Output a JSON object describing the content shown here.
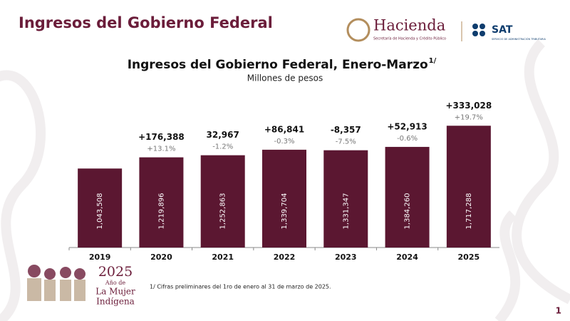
{
  "header": {
    "title": "Ingresos del Gobierno Federal",
    "logo_main": "Hacienda",
    "logo_sub": "Secretaría de Hacienda y Crédito Público",
    "logo_sat": "SAT",
    "logo_sat_sub": "SERVICIO DE ADMINISTRACIÓN TRIBUTARIA"
  },
  "chart_data": {
    "type": "bar",
    "title": "Ingresos del Gobierno Federal, Enero-Marzo",
    "title_note": "1/",
    "subtitle": "Millones de pesos",
    "categories": [
      "2019",
      "2020",
      "2021",
      "2022",
      "2023",
      "2024",
      "2025"
    ],
    "values": [
      1043508,
      1219896,
      1252863,
      1339704,
      1331347,
      1384260,
      1717288
    ],
    "value_labels": [
      "1,043,508",
      "1,219,896",
      "1,252,863",
      "1,339,704",
      "1,331,347",
      "1,384,260",
      "1,717,288"
    ],
    "color": "#5b1731",
    "ylim": [
      -200000,
      1900000
    ],
    "changes": {
      "values": [
        null,
        176388,
        32967,
        86841,
        -8357,
        52913,
        333028
      ],
      "value_labels": [
        null,
        "+176,388",
        "32,967",
        "+86,841",
        "-8,357",
        "+52,913",
        "+333,028"
      ]
    },
    "change_pct": {
      "values": [
        null,
        13.1,
        -1.2,
        -0.3,
        -7.5,
        -0.6,
        19.7
      ],
      "value_labels": [
        null,
        "+13.1%",
        "-1.2%",
        "-0.3%",
        "-7.5%",
        "-0.6%",
        "+19.7%"
      ]
    }
  },
  "footnote": "1/ Cifras preliminares del 1ro de enero al 31 de marzo de 2025.",
  "badge": {
    "year": "2025",
    "line1": "Año de",
    "line2": "La Mujer",
    "line3": "Indígena"
  },
  "page_number": "1"
}
